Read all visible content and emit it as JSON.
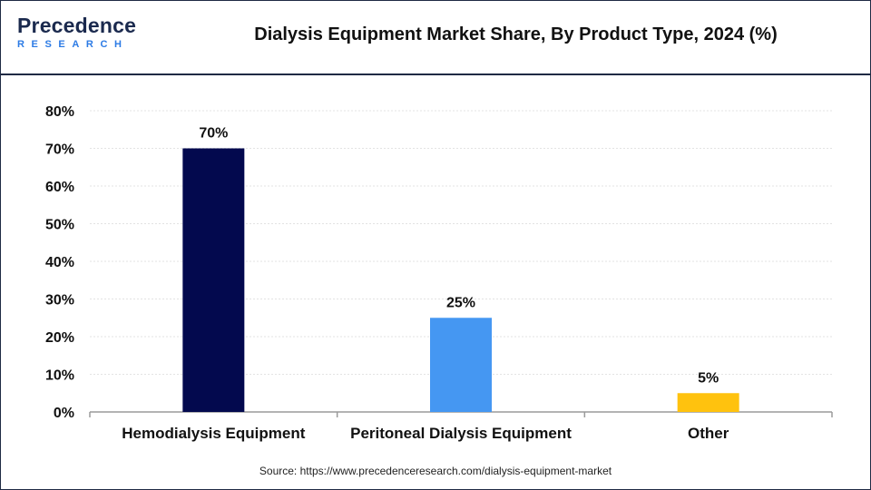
{
  "brand": {
    "logo_top": "Precedence",
    "logo_bottom": "RESEARCH"
  },
  "source_text": "Source: https://www.precedenceresearch.com/dialysis-equipment-market",
  "chart_data": {
    "type": "bar",
    "title": "Dialysis Equipment Market Share, By Product Type, 2024 (%)",
    "categories": [
      "Hemodialysis Equipment",
      "Peritoneal Dialysis Equipment",
      "Other"
    ],
    "values": [
      70,
      25,
      5
    ],
    "data_labels": [
      "70%",
      "25%",
      "5%"
    ],
    "colors": [
      "#03094e",
      "#4597f2",
      "#ffc20e"
    ],
    "ylim": [
      0,
      80
    ],
    "yticks": [
      0,
      10,
      20,
      30,
      40,
      50,
      60,
      70,
      80
    ],
    "ytick_labels": [
      "0%",
      "10%",
      "20%",
      "30%",
      "40%",
      "50%",
      "60%",
      "70%",
      "80%"
    ],
    "xlabel": "",
    "ylabel": "",
    "grid": true,
    "legend": "none"
  }
}
